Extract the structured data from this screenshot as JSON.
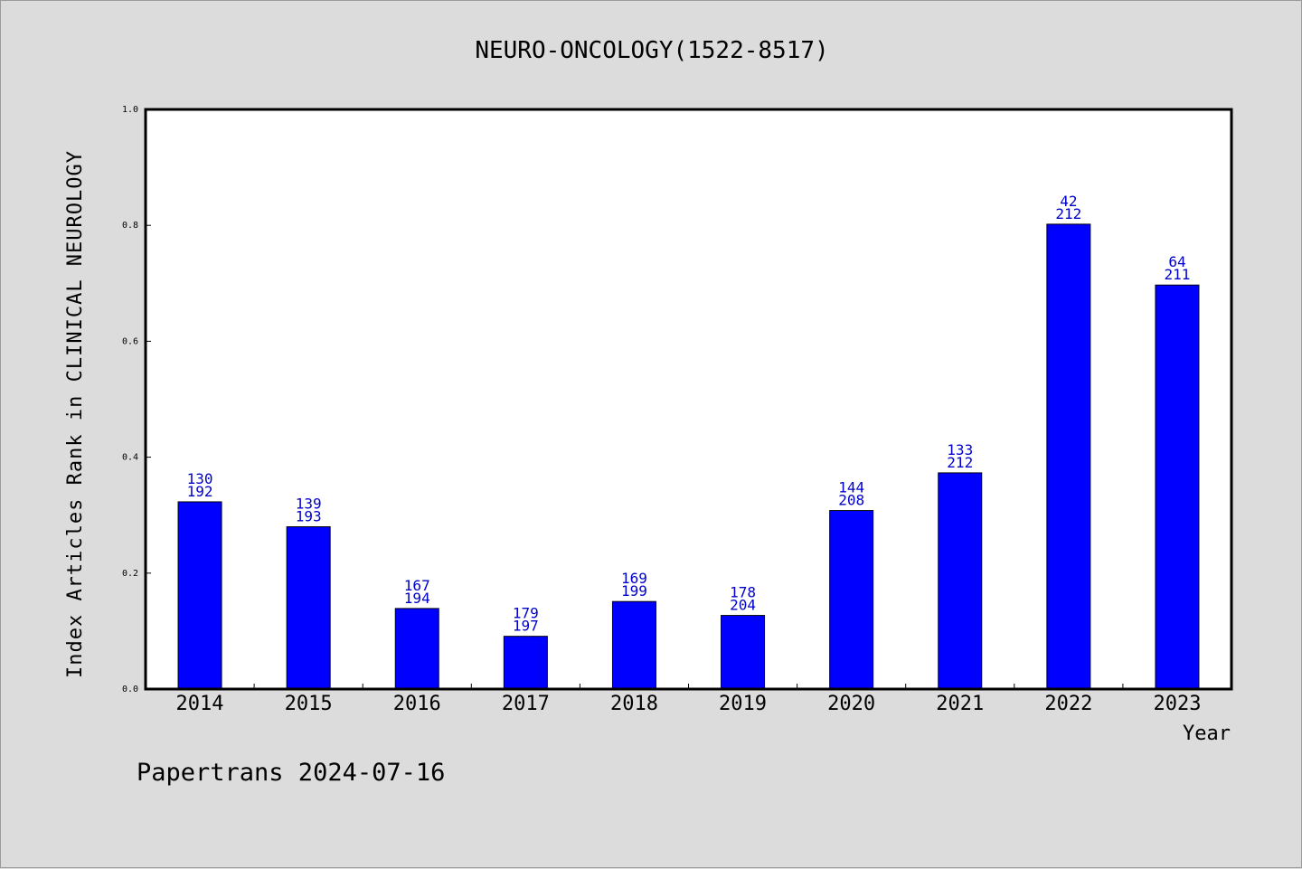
{
  "chart_data": {
    "type": "bar",
    "title": "NEURO-ONCOLOGY(1522-8517)",
    "xlabel": "Year",
    "ylabel": "Index Articles Rank in CLINICAL NEUROLOGY",
    "ylim": [
      0,
      1.0
    ],
    "yticks": [
      "0.0",
      "0.2",
      "0.4",
      "0.6",
      "0.8",
      "1.0"
    ],
    "categories": [
      "2014",
      "2015",
      "2016",
      "2017",
      "2018",
      "2019",
      "2020",
      "2021",
      "2022",
      "2023"
    ],
    "values": [
      0.323,
      0.28,
      0.139,
      0.091,
      0.151,
      0.127,
      0.308,
      0.373,
      0.802,
      0.697
    ],
    "labels_top": [
      "130",
      "139",
      "167",
      "179",
      "169",
      "178",
      "144",
      "133",
      "42",
      "64"
    ],
    "labels_bottom": [
      "192",
      "193",
      "194",
      "197",
      "199",
      "204",
      "208",
      "212",
      "212",
      "211"
    ],
    "bar_color": "#0000ff",
    "label_color": "#0000cc",
    "grid": false,
    "legend": "none"
  },
  "footer": "Papertrans 2024-07-16"
}
